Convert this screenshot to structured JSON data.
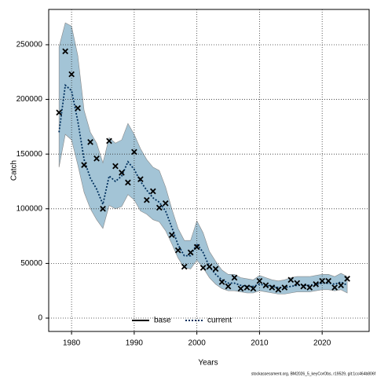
{
  "chart_data": {
    "type": "line",
    "x_label": "Years",
    "y_label": "Catch",
    "footnote": "stockassessment.org, BM2026_5_keyCorObs, r19529, git:1cc464b806f",
    "x": [
      1978,
      1979,
      1980,
      1981,
      1982,
      1983,
      1984,
      1985,
      1986,
      1987,
      1988,
      1989,
      1990,
      1991,
      1992,
      1993,
      1994,
      1995,
      1996,
      1997,
      1998,
      1999,
      2000,
      2001,
      2002,
      2003,
      2004,
      2005,
      2006,
      2007,
      2008,
      2009,
      2010,
      2011,
      2012,
      2013,
      2014,
      2015,
      2016,
      2017,
      2018,
      2019,
      2020,
      2021,
      2022,
      2023,
      2024
    ],
    "series": [
      {
        "color": "#00305e",
        "values": [
          170000,
          213000,
          208000,
          180000,
          145000,
          128000,
          118000,
          104000,
          130000,
          125000,
          130000,
          143000,
          136000,
          125000,
          117000,
          110000,
          106000,
          98000,
          83000,
          67000,
          57000,
          57000,
          68000,
          60000,
          47000,
          40000,
          35000,
          32000,
          32000,
          30000,
          29000,
          29000,
          31000,
          30000,
          29000,
          28000,
          28000,
          29000,
          30000,
          30000,
          30000,
          31000,
          32000,
          32000,
          31000,
          33000,
          30000
        ]
      }
    ],
    "observations": [
      188000,
      244000,
      223000,
      192000,
      140000,
      161000,
      146000,
      100000,
      162000,
      139000,
      133000,
      124000,
      152000,
      127000,
      108000,
      116000,
      101000,
      105000,
      76000,
      62000,
      47000,
      60000,
      65000,
      46000,
      47000,
      45000,
      33000,
      29000,
      37000,
      27000,
      28000,
      27000,
      34000,
      30000,
      28000,
      26000,
      28000,
      35000,
      32000,
      29000,
      28000,
      31000,
      34000,
      34000,
      28000,
      30000,
      36000
    ],
    "band": {
      "color": "#a3c4d6",
      "upper": [
        248000,
        270000,
        267000,
        240000,
        190000,
        170000,
        160000,
        142000,
        165000,
        160000,
        163000,
        178000,
        168000,
        155000,
        145000,
        138000,
        135000,
        120000,
        100000,
        82000,
        71000,
        71000,
        89000,
        78000,
        61000,
        52000,
        44000,
        40000,
        40000,
        37000,
        36000,
        35000,
        39000,
        37000,
        35000,
        34000,
        35000,
        37000,
        38000,
        38000,
        38000,
        39000,
        40000,
        40000,
        38000,
        41000,
        38000
      ],
      "lower": [
        138000,
        168000,
        163000,
        140000,
        115000,
        100000,
        90000,
        82000,
        103000,
        100000,
        102000,
        113000,
        108000,
        98000,
        95000,
        90000,
        88000,
        80000,
        68000,
        55000,
        46000,
        45000,
        53000,
        46000,
        37000,
        31000,
        27000,
        25000,
        25000,
        24000,
        23000,
        23000,
        25000,
        24000,
        23000,
        22000,
        22000,
        23000,
        24000,
        24000,
        24000,
        25000,
        26000,
        26000,
        25000,
        26000,
        23000
      ]
    },
    "legend": [
      {
        "name": "base",
        "color": "#000000",
        "dashed": false
      },
      {
        "name": "current",
        "color": "#00305e",
        "dashed": true
      }
    ],
    "xlim": [
      1976.35,
      2027.5
    ],
    "xticks": [
      1980,
      1990,
      2000,
      2010,
      2020
    ],
    "ylim": [
      -12200,
      282300
    ],
    "yticks": [
      0,
      50000,
      100000,
      150000,
      200000,
      250000
    ],
    "grid": true
  }
}
